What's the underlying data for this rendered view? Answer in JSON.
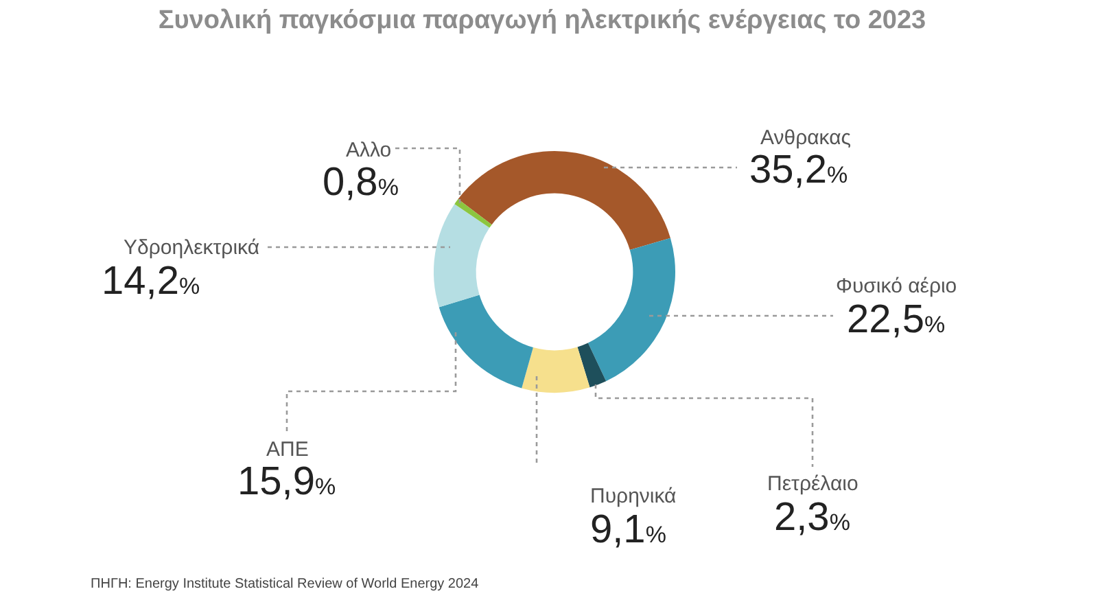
{
  "chart_data": {
    "type": "donut",
    "title": "Συνολική παγκόσμια παραγωγή ηλεκτρικής ενέργειας το 2023",
    "categories": [
      "Ανθρακας",
      "Φυσικό αέριο",
      "Πετρέλαιο",
      "Πυρηνικά",
      "ΑΠΕ",
      "Υδροηλεκτρικά",
      "Αλλο"
    ],
    "values": [
      35.2,
      22.5,
      2.3,
      9.1,
      15.9,
      14.2,
      0.8
    ],
    "value_labels": [
      "35,2%",
      "22,5%",
      "2,3%",
      "9,1%",
      "15,9%",
      "14,2%",
      "0,8%"
    ],
    "colors": [
      "#a5582a",
      "#3c9cb6",
      "#1e4f5b",
      "#f6e08d",
      "#3c9cb6",
      "#b5dee3",
      "#8cc63f"
    ],
    "annotations": [
      "ΠΗΓΗ: Energy Institute Statistical Review of World Energy 2024"
    ]
  }
}
